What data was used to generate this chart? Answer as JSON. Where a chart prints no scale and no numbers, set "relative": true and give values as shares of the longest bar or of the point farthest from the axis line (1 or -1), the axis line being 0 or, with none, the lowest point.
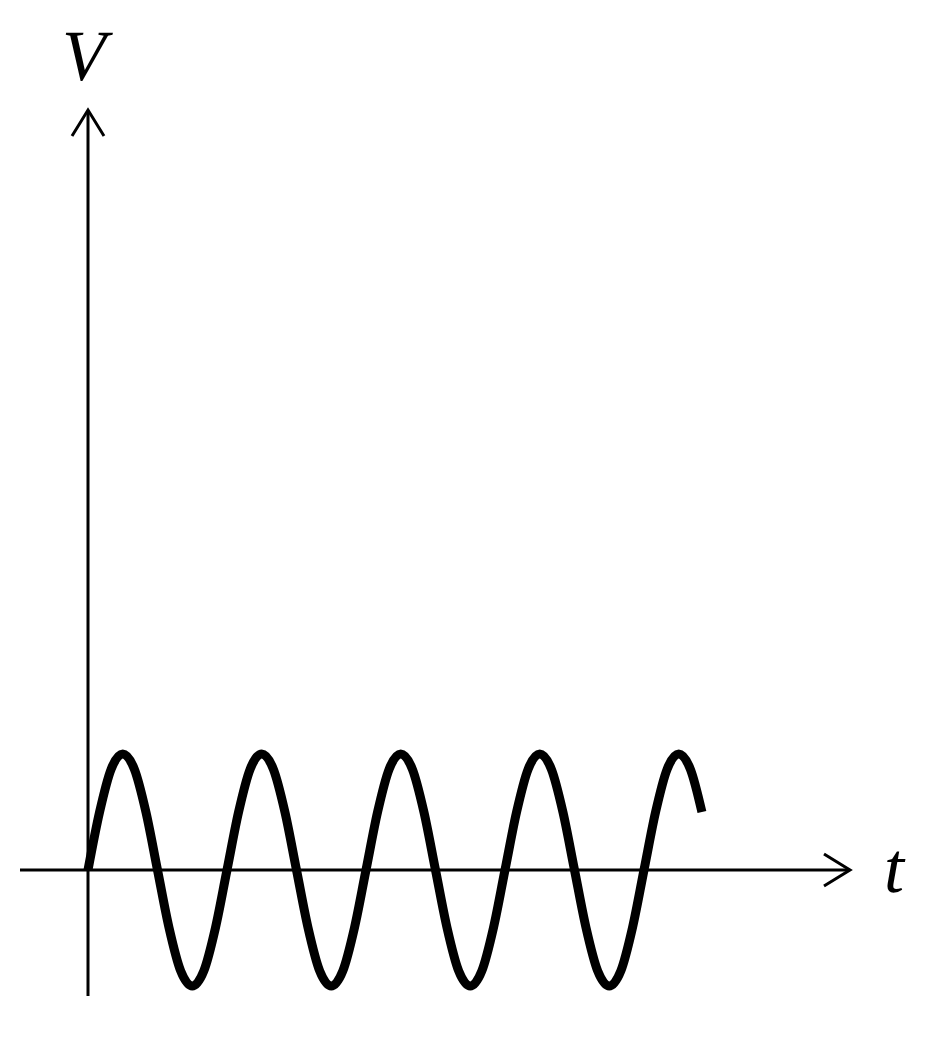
{
  "chart_data": {
    "type": "line",
    "xlabel": "t",
    "annotations": [
      "V"
    ],
    "relative": true,
    "marker": "none",
    "line_style": "solid",
    "categories": [
      null,
      null,
      null,
      null,
      null,
      null,
      null,
      null,
      null,
      null,
      null,
      null,
      null,
      null,
      null,
      null,
      null,
      null,
      null,
      null,
      null,
      null,
      null,
      null,
      null,
      null,
      null,
      null,
      null,
      null,
      null,
      null,
      null,
      null,
      null,
      null,
      null,
      null,
      null,
      null,
      null,
      null,
      null,
      null,
      null,
      null,
      null,
      null,
      null,
      null,
      null,
      null,
      null,
      null
    ],
    "series": [
      {
        "color": "#000000",
        "values": [
          0,
          0.5,
          0.87,
          1,
          0.87,
          0.5,
          0,
          -0.5,
          -0.87,
          -1,
          -0.87,
          -0.5,
          0,
          0.5,
          0.87,
          1,
          0.87,
          0.5,
          0,
          -0.5,
          -0.87,
          -1,
          -0.87,
          -0.5,
          0,
          0.5,
          0.87,
          1,
          0.87,
          0.5,
          0,
          -0.5,
          -0.87,
          -1,
          -0.87,
          -0.5,
          0,
          0.5,
          0.87,
          1,
          0.87,
          0.5,
          0,
          -0.5,
          -0.87,
          -1,
          -0.87,
          -0.5,
          0,
          0.5,
          0.87,
          1,
          0.87,
          0.5
        ]
      }
    ]
  }
}
